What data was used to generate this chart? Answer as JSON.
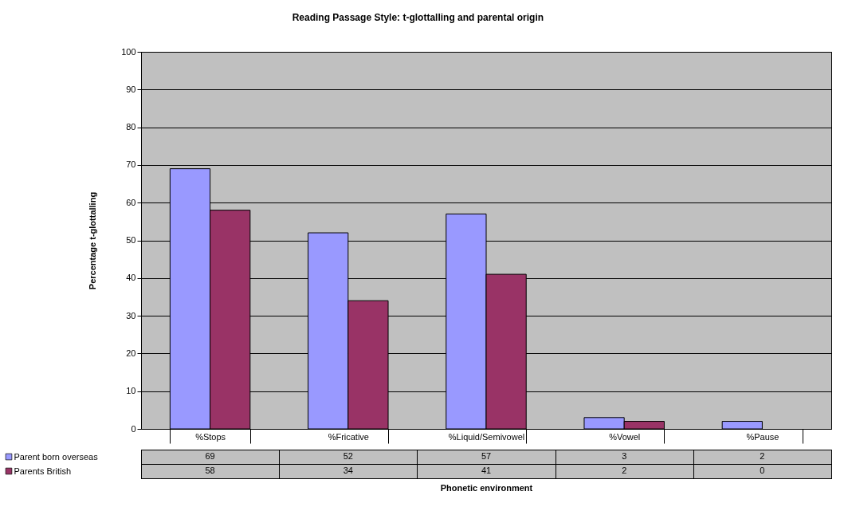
{
  "chart_data": {
    "type": "bar",
    "title": "Reading Passage Style: t-glottalling and parental origin",
    "xlabel": "Phonetic environment",
    "ylabel": "Percentage t-glottalling",
    "categories": [
      "%Stops",
      "%Fricative",
      "%Liquid/Semivowel",
      "%Vowel",
      "%Pause"
    ],
    "series": [
      {
        "name": "Parent born overseas",
        "color": "#9999ff",
        "values": [
          69,
          52,
          57,
          3,
          2
        ]
      },
      {
        "name": "Parents British",
        "color": "#993366",
        "values": [
          58,
          34,
          41,
          2,
          0
        ]
      }
    ],
    "ylim": [
      0,
      100
    ],
    "yticks": [
      0,
      10,
      20,
      30,
      40,
      50,
      60,
      70,
      80,
      90,
      100
    ],
    "grid": "y",
    "legend": "bottom",
    "data_labels": true
  }
}
